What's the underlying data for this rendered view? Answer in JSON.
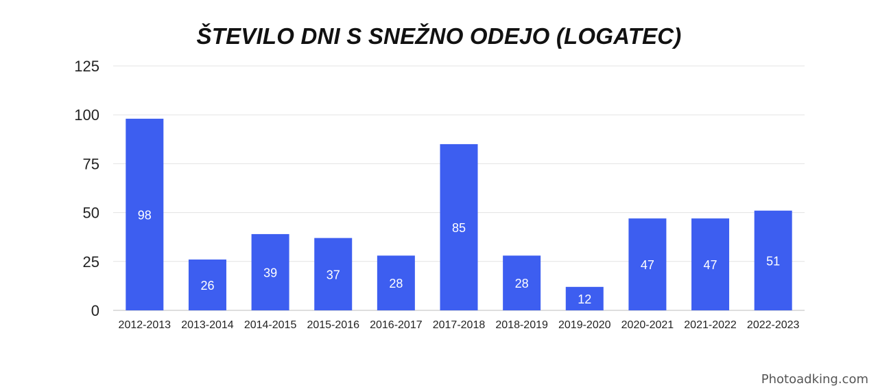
{
  "chart_data": {
    "type": "bar",
    "title": "ŠTEVILO DNI S SNEŽNO ODEJO (LOGATEC)",
    "categories": [
      "2012-2013",
      "2013-2014",
      "2014-2015",
      "2015-2016",
      "2016-2017",
      "2017-2018",
      "2018-2019",
      "2019-2020",
      "2020-2021",
      "2021-2022",
      "2022-2023"
    ],
    "values": [
      98,
      26,
      39,
      37,
      28,
      85,
      28,
      12,
      47,
      47,
      51
    ],
    "data_labels": [
      "98",
      "26",
      "39",
      "37",
      "28",
      "85",
      "28",
      "12",
      "47",
      "47",
      "51"
    ],
    "ylim": [
      0,
      125
    ],
    "yticks": [
      "0",
      "25",
      "50",
      "75",
      "100",
      "125"
    ],
    "grid": true,
    "bar_color": "#3d5ef0",
    "grid_color": "#e3e3e3",
    "label_color": "#ffffff"
  },
  "watermark": "Photoadking.com"
}
